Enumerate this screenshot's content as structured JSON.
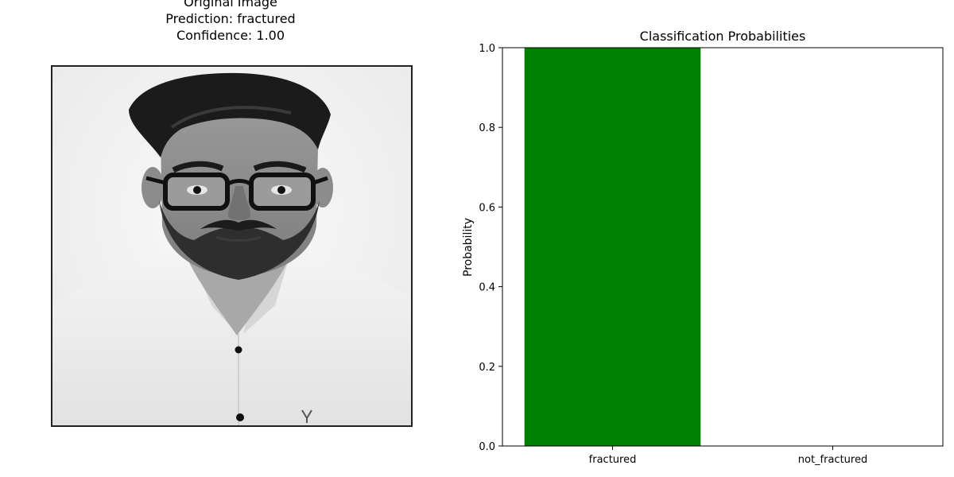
{
  "image_panel": {
    "title_line1": "Original Image",
    "title_line2": "Prediction: fractured",
    "title_line3": "Confidence: 1.00"
  },
  "chart_data": {
    "type": "bar",
    "title": "Classification Probabilities",
    "xlabel": "",
    "ylabel": "Probability",
    "categories": [
      "fractured",
      "not_fractured"
    ],
    "values": [
      1.0,
      0.0
    ],
    "colors": [
      "#008000",
      "#ff0000"
    ],
    "ylim": [
      0,
      1
    ],
    "yticks": [
      "0.0",
      "0.2",
      "0.4",
      "0.6",
      "0.8",
      "1.0"
    ],
    "grid": false
  }
}
